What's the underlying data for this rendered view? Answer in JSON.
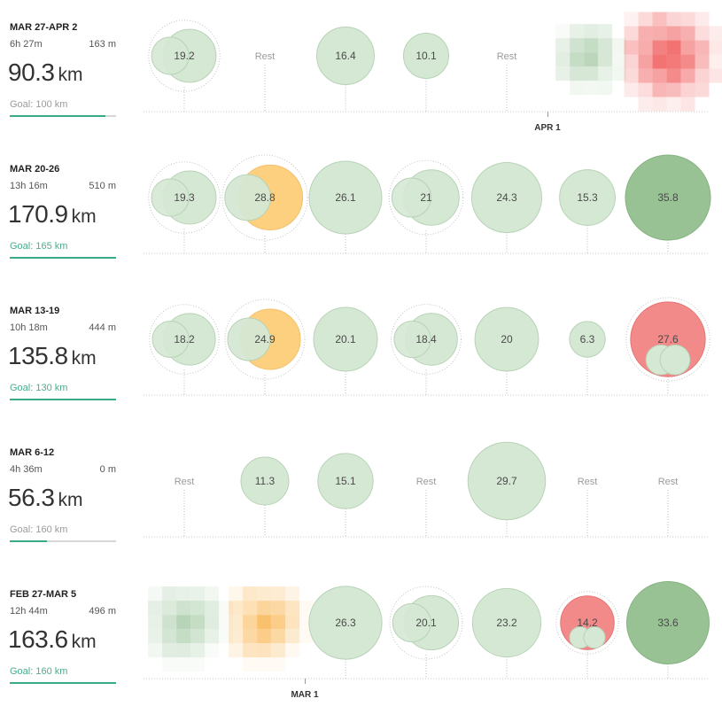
{
  "chart_data": {
    "type": "bubble-calendar",
    "unit": "km",
    "rest_label": "Rest",
    "colors": {
      "easy": "#d5e8d4",
      "easy_stroke": "#b7d3b6",
      "long": "#98c293",
      "long_stroke": "#86b382",
      "workout": "#fdd07f",
      "hard": "#f28a8a",
      "goal_fill": "#3aa98a",
      "goal_met_text": "#4bae8a"
    },
    "weeks": [
      {
        "range": "MAR 27-APR 2",
        "time": "6h 27m",
        "elevation": "163 m",
        "distance": "90.3",
        "unit": "km",
        "goal": "Goal: 100 km",
        "goal_met": false,
        "goal_progress": 0.9,
        "days": [
          {
            "value": 19.2,
            "kind": "easy",
            "label": "19.2",
            "multi": true
          },
          {
            "rest": true
          },
          {
            "value": 16.4,
            "kind": "easy",
            "label": "16.4"
          },
          {
            "value": 10.1,
            "kind": "easy",
            "label": "10.1"
          },
          {
            "rest": true
          },
          {
            "pixelated": true,
            "value": 20
          },
          {
            "pixelated": true,
            "hue": "red",
            "value": 38
          }
        ]
      },
      {
        "range": "MAR 20-26",
        "time": "13h 16m",
        "elevation": "510 m",
        "distance": "170.9",
        "unit": "km",
        "goal": "Goal: 165 km",
        "goal_met": true,
        "goal_progress": 1.0,
        "days": [
          {
            "value": 19.3,
            "kind": "easy",
            "label": "19.3",
            "multi": true
          },
          {
            "value": 28.8,
            "kind": "workout",
            "label": "28.8",
            "multi": true
          },
          {
            "value": 26.1,
            "kind": "easy",
            "label": "26.1"
          },
          {
            "value": 21,
            "kind": "easy",
            "label": "21",
            "multi": true
          },
          {
            "value": 24.3,
            "kind": "easy",
            "label": "24.3"
          },
          {
            "value": 15.3,
            "kind": "easy",
            "label": "15.3"
          },
          {
            "value": 35.8,
            "kind": "long",
            "label": "35.8"
          }
        ]
      },
      {
        "range": "MAR 13-19",
        "time": "10h 18m",
        "elevation": "444 m",
        "distance": "135.8",
        "unit": "km",
        "goal": "Goal: 130 km",
        "goal_met": true,
        "goal_progress": 1.0,
        "days": [
          {
            "value": 18.2,
            "kind": "easy",
            "label": "18.2",
            "multi": true
          },
          {
            "value": 24.9,
            "kind": "workout",
            "label": "24.9",
            "multi": true
          },
          {
            "value": 20.1,
            "kind": "easy",
            "label": "20.1"
          },
          {
            "value": 18.4,
            "kind": "easy",
            "label": "18.4",
            "multi": true
          },
          {
            "value": 20,
            "kind": "easy",
            "label": "20"
          },
          {
            "value": 6.3,
            "kind": "easy",
            "label": "6.3"
          },
          {
            "value": 27.6,
            "kind": "hard",
            "label": "27.6",
            "multi": true
          }
        ]
      },
      {
        "range": "MAR 6-12",
        "time": "4h 36m",
        "elevation": "0 m",
        "distance": "56.3",
        "unit": "km",
        "goal": "Goal: 160 km",
        "goal_met": false,
        "goal_progress": 0.35,
        "days": [
          {
            "rest": true
          },
          {
            "value": 11.3,
            "kind": "easy",
            "label": "11.3"
          },
          {
            "value": 15.1,
            "kind": "easy",
            "label": "15.1"
          },
          {
            "rest": true
          },
          {
            "value": 29.7,
            "kind": "easy",
            "label": "29.7"
          },
          {
            "rest": true
          },
          {
            "rest": true
          }
        ]
      },
      {
        "range": "FEB 27-MAR 5",
        "time": "12h 44m",
        "elevation": "496 m",
        "distance": "163.6",
        "unit": "km",
        "goal": "Goal: 160 km",
        "goal_met": true,
        "goal_progress": 1.0,
        "days": [
          {
            "pixelated": true,
            "hue": "green",
            "value": 26
          },
          {
            "pixelated": true,
            "hue": "orange",
            "value": 26
          },
          {
            "value": 26.3,
            "kind": "easy",
            "label": "26.3"
          },
          {
            "value": 20.1,
            "kind": "easy",
            "label": "20.1",
            "multi": true
          },
          {
            "value": 23.2,
            "kind": "easy",
            "label": "23.2"
          },
          {
            "value": 14.2,
            "kind": "hard",
            "label": "14.2",
            "multi": true
          },
          {
            "value": 33.6,
            "kind": "long",
            "label": "33.6"
          }
        ]
      }
    ],
    "axis_markers": [
      {
        "label": "APR 1",
        "week": 0,
        "day": 5
      },
      {
        "label": "MAR 1",
        "week": 4,
        "day": 1
      }
    ]
  }
}
